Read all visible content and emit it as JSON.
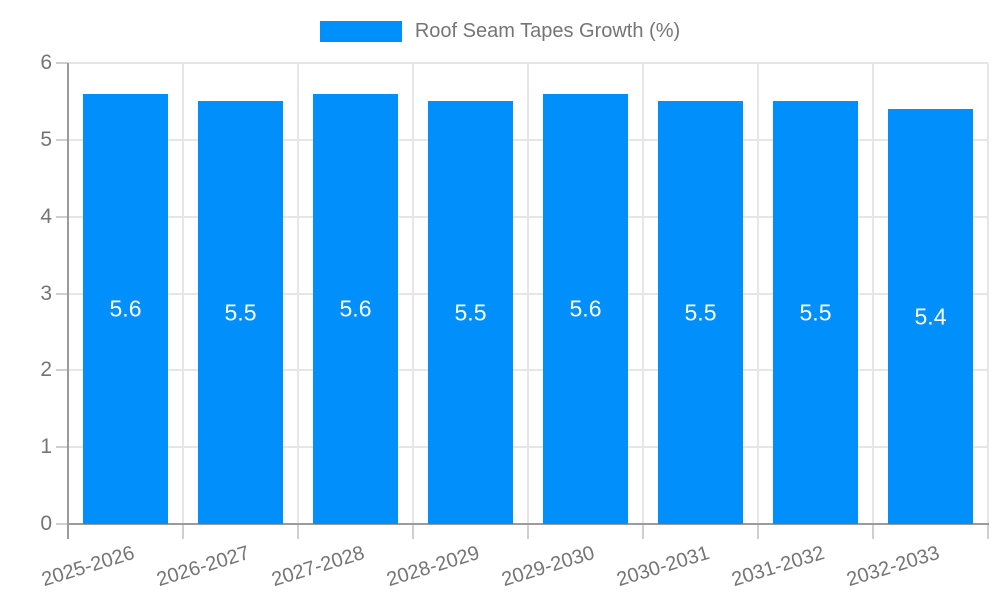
{
  "chart_data": {
    "type": "bar",
    "categories": [
      "2025-2026",
      "2026-2027",
      "2027-2028",
      "2028-2029",
      "2029-2030",
      "2030-2031",
      "2031-2032",
      "2032-2033"
    ],
    "series": [
      {
        "name": "Roof Seam Tapes Growth (%)",
        "color": "#008FFB",
        "values": [
          5.6,
          5.5,
          5.6,
          5.5,
          5.6,
          5.5,
          5.5,
          5.4
        ]
      }
    ],
    "xlabel": "",
    "ylabel": "",
    "ylim": [
      0,
      6
    ],
    "yticks": [
      0,
      1,
      2,
      3,
      4,
      5,
      6
    ],
    "grid": true,
    "legend_position": "top",
    "value_labels": {
      "visible": true,
      "color": "#ffffff",
      "position": "center",
      "decimals": 1
    },
    "xtick_rotation_deg": -17,
    "style_colors": {
      "bar": "#008FFB",
      "grid": "#e6e6e6",
      "axis": "#9b9b9b",
      "tick": "#cfcfcf",
      "label_text": "#757575",
      "background": "#ffffff"
    }
  }
}
